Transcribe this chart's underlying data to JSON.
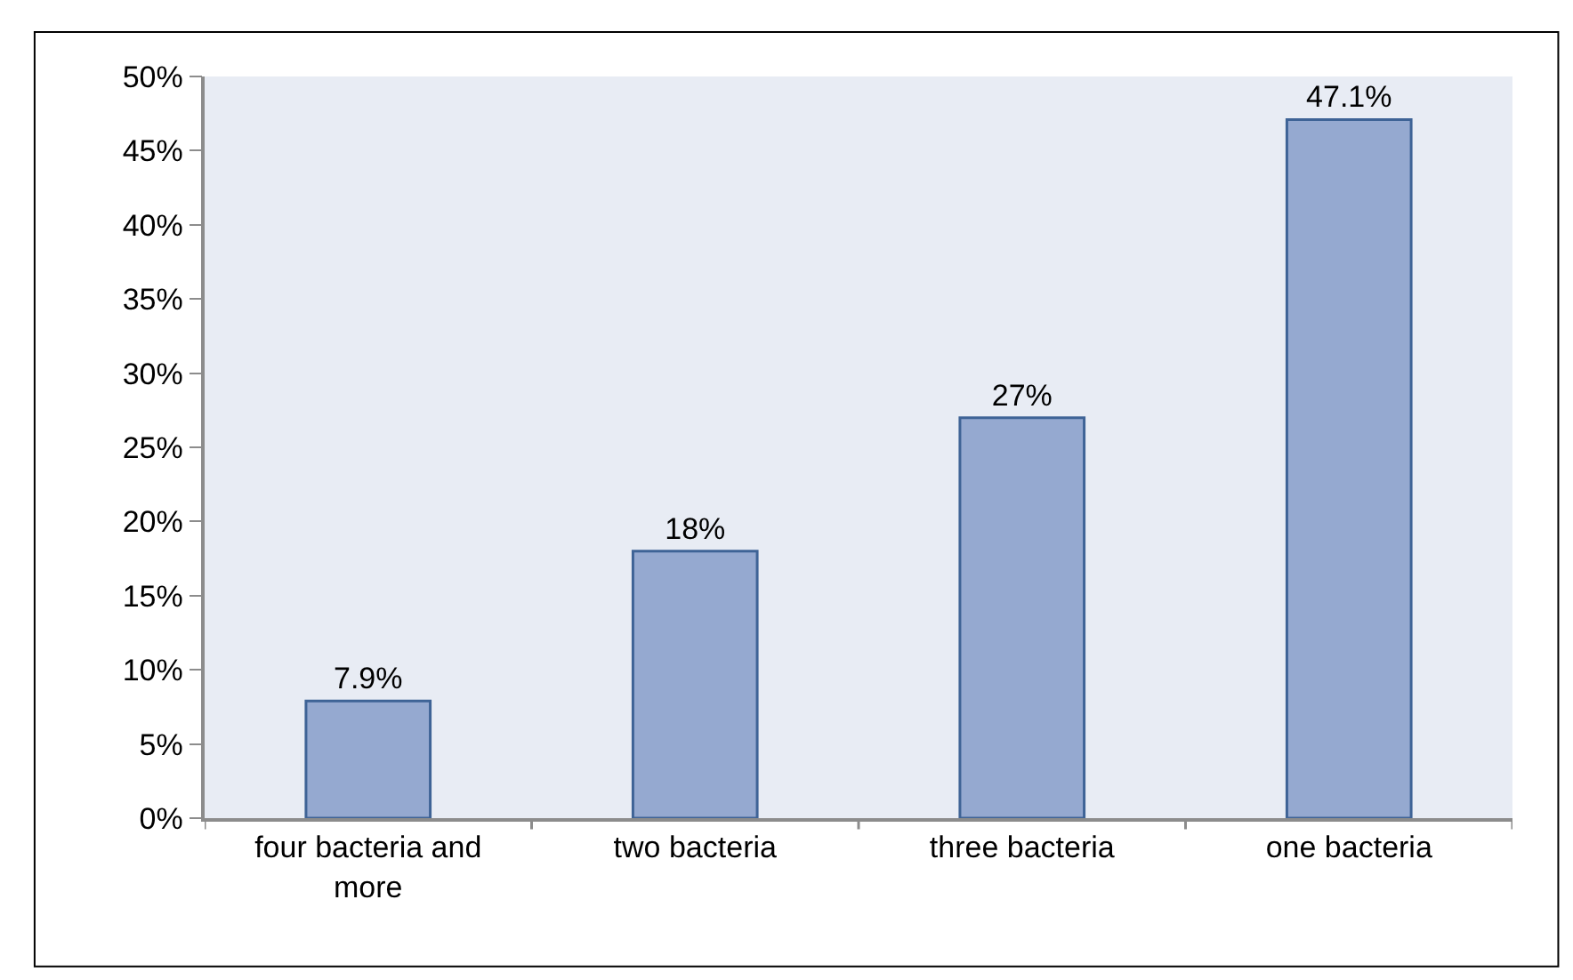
{
  "chart_data": {
    "type": "bar",
    "categories": [
      "four bacteria and more",
      "two bacteria",
      "three bacteria",
      "one bacteria"
    ],
    "values": [
      7.9,
      18,
      27,
      47.1
    ],
    "value_labels": [
      "7.9%",
      "18%",
      "27%",
      "47.1%"
    ],
    "color": "#95a9d0",
    "ylim": [
      0,
      50
    ],
    "yticks": [
      {
        "value": 0,
        "label": "0%"
      },
      {
        "value": 5,
        "label": "5%"
      },
      {
        "value": 10,
        "label": "10%"
      },
      {
        "value": 15,
        "label": "15%"
      },
      {
        "value": 20,
        "label": "20%"
      },
      {
        "value": 25,
        "label": "25%"
      },
      {
        "value": 30,
        "label": "30%"
      },
      {
        "value": 35,
        "label": "35%"
      },
      {
        "value": 40,
        "label": "40%"
      },
      {
        "value": 45,
        "label": "45%"
      },
      {
        "value": 50,
        "label": "50%"
      }
    ],
    "grid": false
  }
}
